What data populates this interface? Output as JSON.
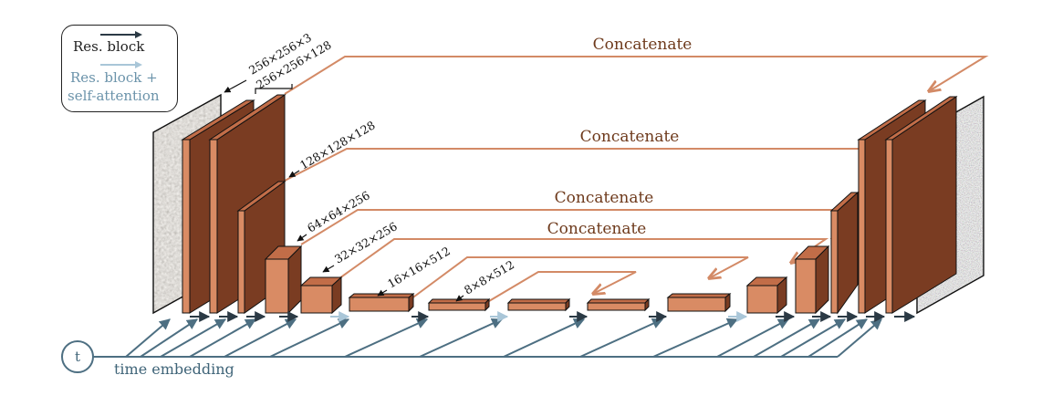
{
  "legend": {
    "res_block": "Res. block",
    "res_attention_line1": "Res. block +",
    "res_attention_line2": "self-attention"
  },
  "dims": {
    "d0": "256×256×3",
    "d1": "256×256×128",
    "d2": "128×128×128",
    "d3": "64×64×256",
    "d4": "32×32×256",
    "d5": "16×16×512",
    "d6": "8×8×512"
  },
  "skips": {
    "s1": "Concatenate",
    "s2": "Concatenate",
    "s3": "Concatenate",
    "s4": "Concatenate"
  },
  "time": {
    "node": "t",
    "label": "time embedding"
  },
  "colors": {
    "block_front": "#7a3c22",
    "block_light": "#d98b64",
    "skip_line": "#d38a66",
    "res_arrow": "#2b3a45",
    "attention_arrow": "#a9c6d8",
    "time_line": "#4d6f82"
  },
  "icons": {
    "input_image": "texture-image-icon",
    "output_image": "noise-image-icon"
  }
}
